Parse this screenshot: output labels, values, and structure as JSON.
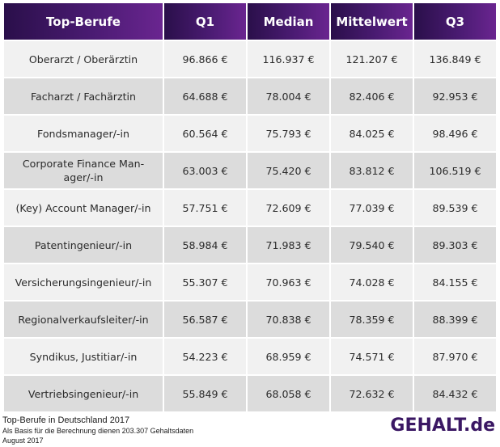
{
  "table": {
    "headers": [
      "Top-Berufe",
      "Q1",
      "Median",
      "Mittelwert",
      "Q3"
    ],
    "rows": [
      [
        "Oberarzt / Oberärztin",
        "96.866 €",
        "116.937 €",
        "121.207 €",
        "136.849 €"
      ],
      [
        "Facharzt / Fachärztin",
        "64.688 €",
        "78.004 €",
        "82.406 €",
        "92.953 €"
      ],
      [
        "Fondsmanager/-in",
        "60.564 €",
        "75.793 €",
        "84.025 €",
        "98.496 €"
      ],
      [
        "Corporate Finance Man-ager/-in",
        "63.003 €",
        "75.420 €",
        "83.812 €",
        "106.519 €"
      ],
      [
        "(Key) Account Manager/-in",
        "57.751 €",
        "72.609 €",
        "77.039 €",
        "89.539 €"
      ],
      [
        "Patentingenieur/-in",
        "58.984 €",
        "71.983 €",
        "79.540 €",
        "89.303 €"
      ],
      [
        "Versicherungsingenieur/-in",
        "55.307 €",
        "70.963 €",
        "74.028 €",
        "84.155 €"
      ],
      [
        "Regionalverkaufsleiter/-in",
        "56.587 €",
        "70.838 €",
        "78.359 €",
        "88.399 €"
      ],
      [
        "Syndikus, Justitiar/-in",
        "54.223 €",
        "68.959 €",
        "74.571 €",
        "87.970 €"
      ],
      [
        "Vertriebsingenieur/-in",
        "55.849 €",
        "68.058 €",
        "72.632 €",
        "84.432 €"
      ]
    ]
  },
  "footer": {
    "line1": "Top-Berufe in Deutschland 2017",
    "line2": "Als Basis für die Berechnung dienen 203.307 Gehaltsdaten",
    "line3": "August 2017"
  },
  "logo": {
    "text": "GEHALT.de",
    "color": "#3a1763"
  },
  "colors": {
    "header_start": "#2a0f4a",
    "header_end": "#6a2590",
    "row_light": "#f1f1f1",
    "row_dark": "#dcdcdc"
  }
}
